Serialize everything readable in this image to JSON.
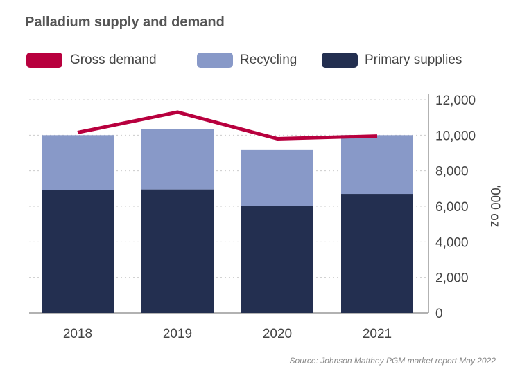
{
  "title": "Palladium supply and demand",
  "legend": [
    {
      "label": "Gross demand",
      "color": "#b8003e"
    },
    {
      "label": "Recycling",
      "color": "#8899c8"
    },
    {
      "label": "Primary supplies",
      "color": "#232f50"
    }
  ],
  "source": "Source: Johnson Matthey PGM market report May 2022",
  "chart_data": {
    "type": "bar",
    "stacked": true,
    "categories": [
      "2018",
      "2019",
      "2020",
      "2021"
    ],
    "series": [
      {
        "name": "Primary supplies",
        "type": "bar",
        "color": "#232f50",
        "values": [
          6900,
          6950,
          6000,
          6700
        ]
      },
      {
        "name": "Recycling",
        "type": "bar",
        "color": "#8899c8",
        "values": [
          3100,
          3400,
          3200,
          3300
        ]
      },
      {
        "name": "Gross demand",
        "type": "line",
        "color": "#b8003e",
        "values": [
          10150,
          11300,
          9800,
          9950
        ]
      }
    ],
    "ylabel": "'000 oz",
    "ylim": [
      0,
      12000
    ],
    "yticks": [
      "0",
      "2,000",
      "4,000",
      "6,000",
      "8,000",
      "10,000",
      "12,000"
    ],
    "ytick_values": [
      0,
      2000,
      4000,
      6000,
      8000,
      10000,
      12000
    ],
    "grid": true,
    "legend_position": "top"
  }
}
